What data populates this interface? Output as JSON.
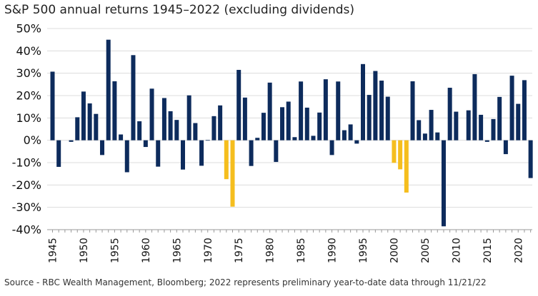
{
  "title": "S&P 500 annual returns 1945–2022 (excluding dividends)",
  "source": "Source - RBC Wealth Management, Bloomberg; 2022 represents preliminary year-to-date data through 11/21/22",
  "colors": {
    "default_bar": "#0d2b5c",
    "highlight_bar": "#f5be1e",
    "gridline": "#dcdcdc",
    "axis": "#9a9a9a"
  },
  "chart_data": {
    "type": "bar",
    "x_tick_labels": [
      "1945",
      "1950",
      "1955",
      "1960",
      "1965",
      "1970",
      "1975",
      "1980",
      "1985",
      "1990",
      "1995",
      "2000",
      "2005",
      "2010",
      "2015",
      "2020"
    ],
    "y_tick_labels": [
      "50%",
      "40%",
      "30%",
      "20%",
      "10%",
      "0%",
      "-10%",
      "-20%",
      "-30%",
      "-40%"
    ],
    "ylim": [
      -40,
      50
    ],
    "y_unit": "%",
    "grid": true,
    "highlighted_years": [
      1973,
      1974,
      2000,
      2001,
      2002
    ],
    "categories": [
      1945,
      1946,
      1947,
      1948,
      1949,
      1950,
      1951,
      1952,
      1953,
      1954,
      1955,
      1956,
      1957,
      1958,
      1959,
      1960,
      1961,
      1962,
      1963,
      1964,
      1965,
      1966,
      1967,
      1968,
      1969,
      1970,
      1971,
      1972,
      1973,
      1974,
      1975,
      1976,
      1977,
      1978,
      1979,
      1980,
      1981,
      1982,
      1983,
      1984,
      1985,
      1986,
      1987,
      1988,
      1989,
      1990,
      1991,
      1992,
      1993,
      1994,
      1995,
      1996,
      1997,
      1998,
      1999,
      2000,
      2001,
      2002,
      2003,
      2004,
      2005,
      2006,
      2007,
      2008,
      2009,
      2010,
      2011,
      2012,
      2013,
      2014,
      2015,
      2016,
      2017,
      2018,
      2019,
      2020,
      2021,
      2022
    ],
    "values": [
      30.7,
      -11.9,
      0.0,
      -0.7,
      10.3,
      21.8,
      16.5,
      11.8,
      -6.6,
      45.0,
      26.4,
      2.6,
      -14.3,
      38.1,
      8.5,
      -3.0,
      23.1,
      -11.8,
      18.9,
      13.0,
      9.1,
      -13.1,
      20.1,
      7.7,
      -11.4,
      0.1,
      10.8,
      15.6,
      -17.4,
      -29.7,
      31.5,
      19.1,
      -11.5,
      1.1,
      12.3,
      25.8,
      -9.7,
      14.8,
      17.3,
      1.4,
      26.3,
      14.6,
      2.0,
      12.4,
      27.3,
      -6.6,
      26.3,
      4.5,
      7.1,
      -1.5,
      34.1,
      20.3,
      31.0,
      26.7,
      19.5,
      -10.1,
      -13.0,
      -23.4,
      26.4,
      9.0,
      3.0,
      13.6,
      3.5,
      -38.5,
      23.5,
      12.8,
      0.0,
      13.4,
      29.6,
      11.4,
      -0.7,
      9.5,
      19.4,
      -6.2,
      28.9,
      16.3,
      26.9,
      -16.9
    ]
  }
}
